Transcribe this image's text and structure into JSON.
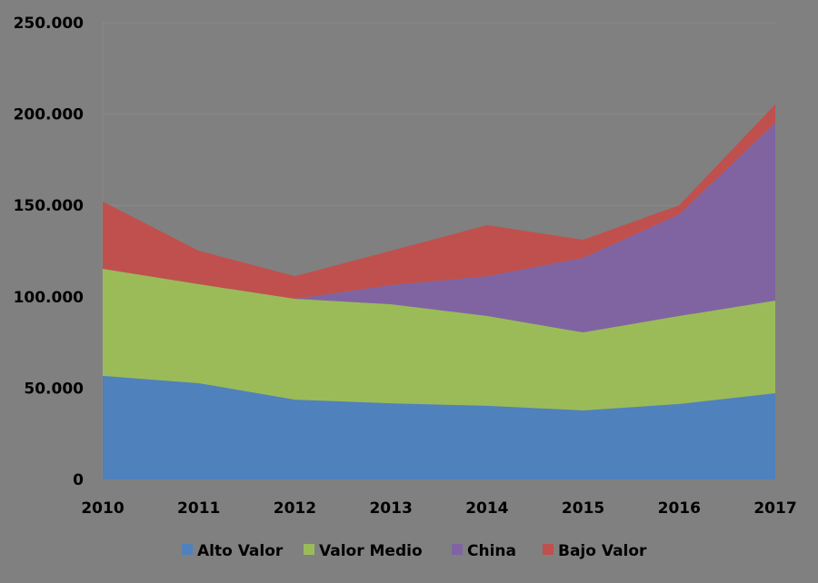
{
  "chart_data": {
    "type": "area",
    "stacked": true,
    "categories": [
      "2010",
      "2011",
      "2012",
      "2013",
      "2014",
      "2015",
      "2016",
      "2017"
    ],
    "series": [
      {
        "name": "Alto Valor",
        "color": "#4f81bd",
        "values": [
          56700,
          52700,
          43700,
          41700,
          40300,
          37800,
          41300,
          47200
        ]
      },
      {
        "name": "Valor Medio",
        "color": "#9bbb59",
        "values": [
          58600,
          54200,
          55200,
          54200,
          49200,
          42700,
          48200,
          50700
        ]
      },
      {
        "name": "China",
        "color": "#8064a2",
        "values": [
          0,
          0,
          0,
          10500,
          21800,
          40800,
          55600,
          97400
        ]
      },
      {
        "name": "Bajo Valor",
        "color": "#c0504d",
        "values": [
          36800,
          18300,
          12400,
          18800,
          27900,
          9900,
          5000,
          10000
        ]
      }
    ],
    "yticks": [
      "0",
      "50.000",
      "100.000",
      "150.000",
      "200.000",
      "250.000"
    ],
    "ylim": [
      0,
      250000
    ],
    "grid": true,
    "legend": "bottom",
    "background": "#808080"
  }
}
